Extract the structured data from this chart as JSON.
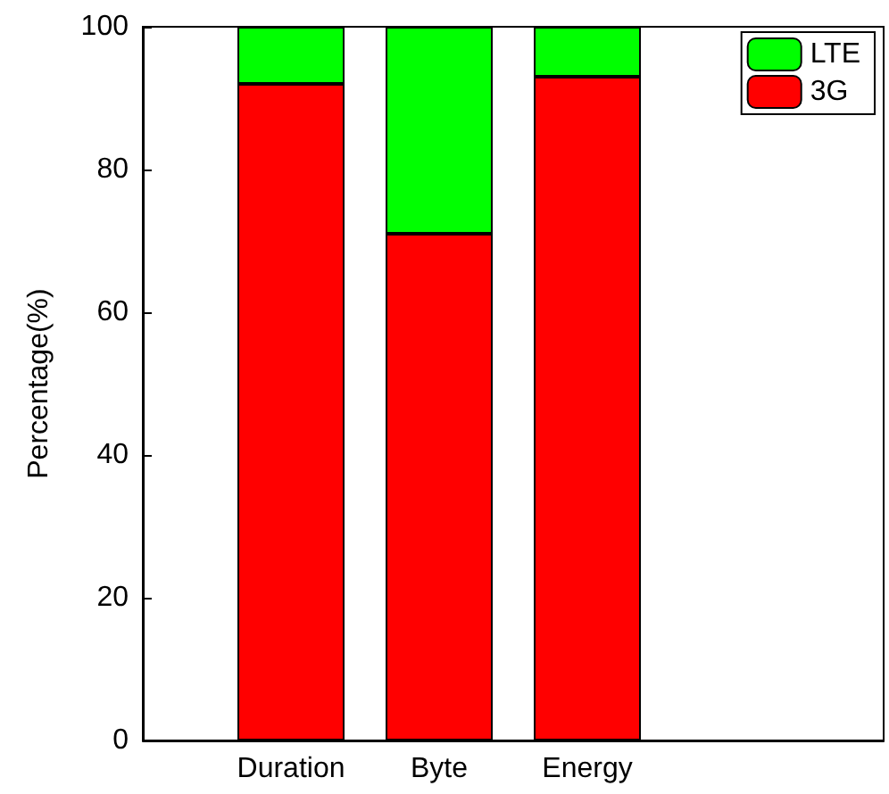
{
  "chart_data": {
    "type": "bar",
    "stacked": true,
    "ylabel": "Percentage(%)",
    "categories": [
      null,
      "Duration",
      "Byte",
      "Energy",
      null,
      null
    ],
    "series": [
      {
        "name": "3G",
        "color": "#ff0000",
        "values": [
          null,
          92,
          71,
          93,
          null,
          null
        ]
      },
      {
        "name": "LTE",
        "color": "#00ff00",
        "values": [
          null,
          8,
          29,
          7,
          null,
          null
        ]
      }
    ],
    "ylim": [
      0,
      100
    ],
    "yticks": [
      0,
      20,
      40,
      60,
      80,
      100
    ],
    "grid": false,
    "legend": "top right"
  }
}
